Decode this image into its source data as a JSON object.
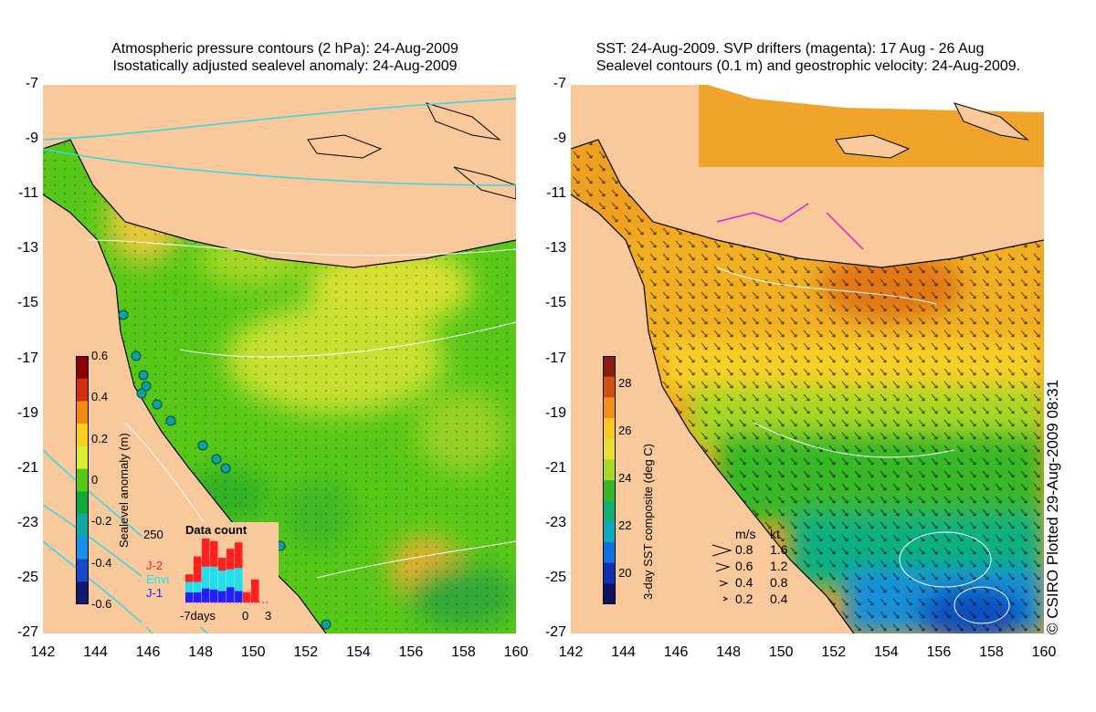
{
  "left_panel": {
    "title_line1": "Atmospheric pressure contours (2 hPa): 24-Aug-2009",
    "title_line2": "Isostatically adjusted sealevel anomaly: 24-Aug-2009",
    "colorbar": {
      "label": "Sealevel anomaly (m)",
      "ticks": [
        "0.6",
        "0.4",
        "0.2",
        "0",
        "-0.2",
        "-0.4",
        "-0.6"
      ],
      "colors": [
        "#8b0000",
        "#d03010",
        "#f08a10",
        "#f8d020",
        "#d8ee30",
        "#58c818",
        "#10a838",
        "#10a8a0",
        "#1890e8",
        "#1848c8",
        "#101870"
      ]
    },
    "data_count": {
      "title": "Data count",
      "max_label": "250",
      "series": [
        {
          "name": "J-2",
          "color": "#ff2020"
        },
        {
          "name": "Envi",
          "color": "#20e0f0"
        },
        {
          "name": "J-1",
          "color": "#2020ff"
        }
      ],
      "x_labels": [
        "-7days",
        "0",
        "3"
      ],
      "bars": [
        {
          "j1": 40,
          "envi": 40,
          "j2": 30
        },
        {
          "j1": 40,
          "envi": 40,
          "j2": 100
        },
        {
          "j1": 55,
          "envi": 85,
          "j2": 120
        },
        {
          "j1": 50,
          "envi": 90,
          "j2": 100
        },
        {
          "j1": 45,
          "envi": 80,
          "j2": 50
        },
        {
          "j1": 60,
          "envi": 70,
          "j2": 80
        },
        {
          "j1": 45,
          "envi": 90,
          "j2": 100
        },
        {
          "j1": 0,
          "envi": 0,
          "j2": 40
        },
        {
          "j1": 0,
          "envi": 0,
          "j2": 90
        },
        {
          "j1": 0,
          "envi": 0,
          "j2": 0
        }
      ]
    }
  },
  "right_panel": {
    "title_line1": "SST: 24-Aug-2009. SVP drifters (magenta): 17 Aug - 26 Aug",
    "title_line2": "Sealevel contours (0.1 m) and geostrophic velocity: 24-Aug-2009.",
    "colorbar": {
      "label": "3-day SST composite (deg C)",
      "ticks": [
        "28",
        "26",
        "24",
        "22",
        "20"
      ],
      "colors": [
        "#8b1a10",
        "#d05010",
        "#f09018",
        "#f8c820",
        "#e8e030",
        "#a8d828",
        "#38b828",
        "#10b070",
        "#10a8c0",
        "#1070e0",
        "#1030b0",
        "#101060"
      ]
    },
    "velocity_legend": {
      "header_ms": "m/s",
      "header_kt": "kt",
      "rows": [
        {
          "ms": "0.8",
          "kt": "1.6"
        },
        {
          "ms": "0.6",
          "kt": "1.2"
        },
        {
          "ms": "0.4",
          "kt": "0.8"
        },
        {
          "ms": "0.2",
          "kt": "0.4"
        }
      ]
    }
  },
  "axes": {
    "y_labels": [
      "-7",
      "-9",
      "-11",
      "-13",
      "-15",
      "-17",
      "-19",
      "-21",
      "-23",
      "-25",
      "-27"
    ],
    "x_labels": [
      "142",
      "144",
      "146",
      "148",
      "150",
      "152",
      "154",
      "156",
      "158",
      "160"
    ]
  },
  "credit": "© CSIRO Plotted 29-Aug-2009 08:31",
  "colors": {
    "land": "#f9c89b",
    "coast": "#000000",
    "pressure_contour": "#30d8e8",
    "sealevel_contour": "#ffffff"
  }
}
